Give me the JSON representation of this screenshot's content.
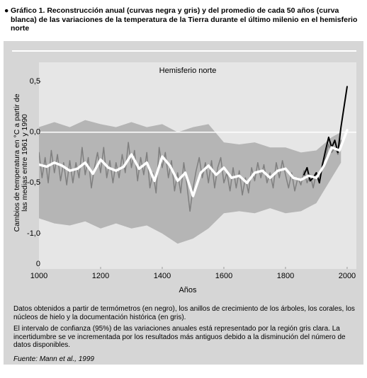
{
  "caption": "Gráfico 1. Reconstrucción anual (curvas negra y gris) y del promedio de cada 50 años (curva blanca) de las variaciones de la temperatura de la Tierra durante el último milenio en el hemisferio norte",
  "notes": [
    "Datos obtenidos a partir de termómetros (en negro), los anillos de crecimiento de los árboles, los corales, los núcleos de hielo y la documentación histórica (en gris).",
    "El intervalo de confianza (95%) de las variaciones anuales está representado por la región gris clara. La incertidumbre se ve incrementada por los resultados más antiguos debido a la disminución del número de datos disponibles."
  ],
  "source": "Fuente: Mann et al., 1999",
  "chart_data": {
    "type": "line",
    "title": "Hemisferio norte",
    "xlabel": "Años",
    "ylabel": [
      "Cambios de temperatura en °C a partir de",
      "las medias entre 1961 y 1990"
    ],
    "origin_label": "0",
    "xlim": [
      1000,
      2030
    ],
    "xticks": [
      1000,
      1200,
      1400,
      1600,
      1800,
      2000
    ],
    "ylim": [
      -1.35,
      0.69
    ],
    "yticks": [
      {
        "value": 0.5,
        "label": "0,5"
      },
      {
        "value": 0,
        "label": "0,0"
      },
      {
        "value": -0.5,
        "label": "-0,5"
      },
      {
        "value": -1,
        "label": "-1,0"
      }
    ],
    "zero_line": true,
    "band": {
      "color": "#b5b5b5",
      "x": [
        1000,
        1050,
        1100,
        1150,
        1200,
        1250,
        1300,
        1350,
        1400,
        1450,
        1500,
        1550,
        1600,
        1650,
        1700,
        1750,
        1800,
        1850,
        1900,
        1950,
        1980
      ],
      "upper": [
        0.05,
        0.1,
        0.05,
        0.12,
        0.08,
        0.05,
        0.1,
        0.05,
        0.08,
        0.0,
        0.05,
        0.08,
        -0.1,
        -0.12,
        -0.1,
        -0.15,
        -0.15,
        -0.2,
        -0.18,
        -0.05,
        0.0
      ],
      "lower": [
        -0.85,
        -0.9,
        -0.92,
        -0.88,
        -0.95,
        -0.9,
        -0.95,
        -0.92,
        -1.0,
        -1.1,
        -1.05,
        -0.95,
        -0.8,
        -0.78,
        -0.8,
        -0.75,
        -0.8,
        -0.78,
        -0.7,
        -0.45,
        -0.3
      ]
    },
    "series": [
      {
        "color": "#7f7f7f",
        "width": 1.5,
        "x": [
          1000,
          1010,
          1020,
          1030,
          1040,
          1050,
          1060,
          1070,
          1080,
          1090,
          1100,
          1110,
          1120,
          1130,
          1140,
          1150,
          1160,
          1170,
          1180,
          1190,
          1200,
          1210,
          1220,
          1230,
          1240,
          1250,
          1260,
          1270,
          1280,
          1290,
          1300,
          1310,
          1320,
          1330,
          1340,
          1350,
          1360,
          1370,
          1380,
          1390,
          1400,
          1410,
          1420,
          1430,
          1440,
          1450,
          1460,
          1470,
          1480,
          1490,
          1500,
          1510,
          1520,
          1530,
          1540,
          1550,
          1560,
          1570,
          1580,
          1590,
          1600,
          1610,
          1620,
          1630,
          1640,
          1650,
          1660,
          1670,
          1680,
          1690,
          1700,
          1710,
          1720,
          1730,
          1740,
          1750,
          1760,
          1770,
          1780,
          1790,
          1800,
          1810,
          1820,
          1830,
          1840,
          1850,
          1860,
          1870,
          1880,
          1890,
          1900,
          1910,
          1920,
          1930,
          1940,
          1950,
          1960,
          1970,
          1980
        ],
        "values": [
          -0.2,
          -0.45,
          -0.25,
          -0.5,
          -0.18,
          -0.4,
          -0.22,
          -0.48,
          -0.3,
          -0.52,
          -0.28,
          -0.5,
          -0.3,
          -0.45,
          -0.15,
          -0.42,
          -0.25,
          -0.55,
          -0.35,
          -0.2,
          -0.4,
          -0.15,
          -0.45,
          -0.28,
          -0.5,
          -0.3,
          -0.45,
          -0.22,
          -0.4,
          -0.1,
          -0.35,
          -0.18,
          -0.48,
          -0.25,
          -0.42,
          -0.2,
          -0.55,
          -0.4,
          -0.6,
          -0.15,
          -0.35,
          -0.2,
          -0.45,
          -0.28,
          -0.58,
          -0.4,
          -0.6,
          -0.3,
          -0.52,
          -0.78,
          -0.55,
          -0.38,
          -0.25,
          -0.45,
          -0.3,
          -0.5,
          -0.28,
          -0.55,
          -0.35,
          -0.25,
          -0.5,
          -0.4,
          -0.58,
          -0.35,
          -0.55,
          -0.38,
          -0.62,
          -0.45,
          -0.6,
          -0.35,
          -0.48,
          -0.3,
          -0.45,
          -0.32,
          -0.5,
          -0.4,
          -0.55,
          -0.3,
          -0.45,
          -0.28,
          -0.42,
          -0.55,
          -0.4,
          -0.58,
          -0.45,
          -0.52,
          -0.38,
          -0.5,
          -0.42,
          -0.55,
          -0.4,
          -0.48,
          -0.3,
          -0.25,
          -0.12,
          -0.2,
          -0.15,
          -0.22,
          -0.08
        ]
      },
      {
        "color": "#000000",
        "width": 2,
        "x": [
          1860,
          1870,
          1880,
          1890,
          1900,
          1910,
          1920,
          1930,
          1940,
          1950,
          1960,
          1970,
          1980,
          1990,
          2000
        ],
        "values": [
          -0.42,
          -0.35,
          -0.48,
          -0.45,
          -0.4,
          -0.5,
          -0.32,
          -0.18,
          -0.05,
          -0.15,
          -0.08,
          -0.2,
          0.05,
          0.25,
          0.45
        ]
      },
      {
        "color": "#ffffff",
        "width": 3.5,
        "x": [
          1000,
          1025,
          1050,
          1075,
          1100,
          1125,
          1150,
          1175,
          1200,
          1225,
          1250,
          1275,
          1300,
          1325,
          1350,
          1375,
          1400,
          1425,
          1450,
          1475,
          1500,
          1525,
          1550,
          1575,
          1600,
          1625,
          1650,
          1675,
          1700,
          1725,
          1750,
          1775,
          1800,
          1825,
          1850,
          1875,
          1900,
          1925,
          1950,
          1975,
          2000
        ],
        "values": [
          -0.32,
          -0.34,
          -0.3,
          -0.33,
          -0.38,
          -0.36,
          -0.3,
          -0.41,
          -0.27,
          -0.35,
          -0.38,
          -0.34,
          -0.22,
          -0.36,
          -0.3,
          -0.48,
          -0.24,
          -0.33,
          -0.48,
          -0.4,
          -0.63,
          -0.4,
          -0.33,
          -0.42,
          -0.35,
          -0.45,
          -0.43,
          -0.5,
          -0.4,
          -0.38,
          -0.45,
          -0.38,
          -0.36,
          -0.45,
          -0.47,
          -0.43,
          -0.45,
          -0.33,
          -0.15,
          -0.18,
          0.02
        ]
      }
    ]
  }
}
